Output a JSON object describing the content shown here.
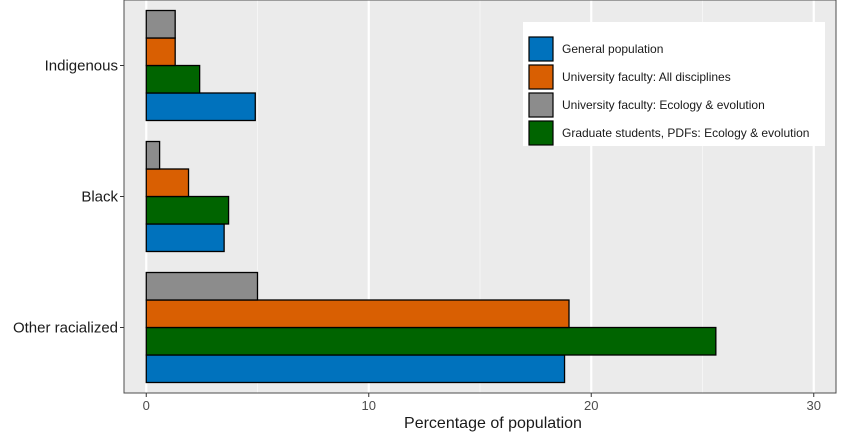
{
  "chart_data": {
    "type": "bar",
    "orientation": "horizontal",
    "title": "",
    "xlabel": "Percentage of population",
    "ylabel": "",
    "xlim": [
      -1,
      31
    ],
    "xticks": [
      0,
      10,
      20,
      30
    ],
    "xtick_labels": [
      "0",
      "10",
      "20",
      "30"
    ],
    "grid": true,
    "legend_position": "top-right",
    "categories": [
      "Indigenous",
      "Black",
      "Other racialized"
    ],
    "series": [
      {
        "name": "General population",
        "color": "#0072bd",
        "values": [
          4.9,
          3.5,
          18.8
        ]
      },
      {
        "name": "Graduate students, PDFs: Ecology & evolution",
        "color": "#006400",
        "values": [
          2.4,
          3.7,
          25.6
        ]
      },
      {
        "name": "University faculty: All disciplines",
        "color": "#d95f02",
        "values": [
          1.3,
          1.9,
          19.0
        ]
      },
      {
        "name": "University faculty: Ecology & evolution",
        "color": "#8c8c8c",
        "values": [
          1.3,
          0.6,
          5.0
        ]
      }
    ],
    "legend_order": [
      "General population",
      "University faculty: All disciplines",
      "University faculty: Ecology & evolution",
      "Graduate students, PDFs: Ecology & evolution"
    ]
  }
}
